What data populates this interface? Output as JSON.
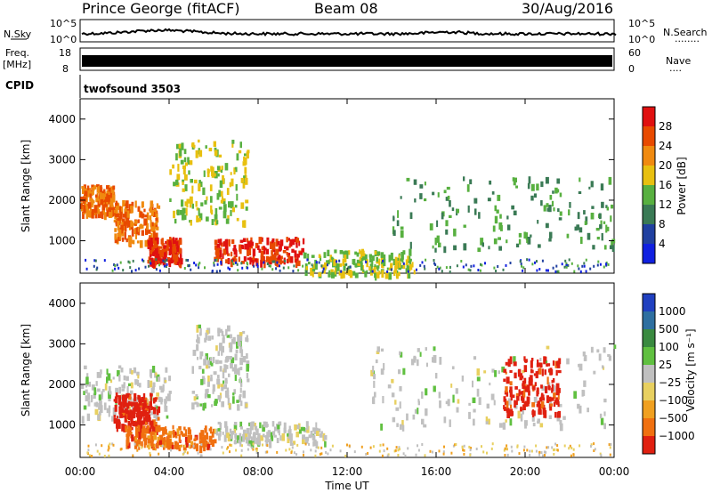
{
  "header": {
    "station": "Prince George (fitACF)",
    "beam": "Beam 08",
    "date": "30/Aug/2016"
  },
  "panels": {
    "nsky_label": "N.Sky",
    "nsearch_label": "N.Search",
    "nsearch_dots": "........",
    "freq_label_top": "Freq.",
    "freq_label_unit": "[MHz]",
    "nave_label": "Nave",
    "nave_dots": "....",
    "cpid_label": "CPID",
    "cpid_value": "twofsound 3503",
    "nsky_ticks_left": [
      "10^5",
      "10^0"
    ],
    "nsearch_ticks_right": [
      "10^5",
      "10^0"
    ],
    "freq_ticks_left": [
      "18",
      "8"
    ],
    "nave_ticks_right": [
      "60",
      "0"
    ]
  },
  "chart_data": [
    {
      "type": "heatmap",
      "name": "power",
      "xlabel": "",
      "ylabel": "Slant Range [km]",
      "x_range_hours": [
        0,
        24
      ],
      "ylim": [
        200,
        4500
      ],
      "yticks": [
        1000,
        2000,
        3000,
        4000
      ],
      "colorbar": {
        "label": "Power [dB]",
        "ticks": [
          4,
          8,
          12,
          16,
          20,
          24,
          28
        ],
        "colors": [
          "#1020e0",
          "#2040a0",
          "#3a7a55",
          "#58b040",
          "#e8c010",
          "#f08a10",
          "#e84a00",
          "#e01010"
        ]
      },
      "features": [
        {
          "time_h": [
            0.0,
            1.5
          ],
          "range_km": [
            1700,
            2400
          ],
          "level_db": 24
        },
        {
          "time_h": [
            1.5,
            3.5
          ],
          "range_km": [
            1000,
            2000
          ],
          "level_db": 22
        },
        {
          "time_h": [
            3.0,
            4.5
          ],
          "range_km": [
            500,
            1100
          ],
          "level_db": 26
        },
        {
          "time_h": [
            4.0,
            7.5
          ],
          "range_km": [
            1500,
            3500
          ],
          "level_db": 14
        },
        {
          "time_h": [
            6.0,
            10.0
          ],
          "range_km": [
            500,
            1100
          ],
          "level_db": 26
        },
        {
          "time_h": [
            10.0,
            15.0
          ],
          "range_km": [
            200,
            800
          ],
          "level_db": 16
        },
        {
          "time_h": [
            14.0,
            24.0
          ],
          "range_km": [
            800,
            2600
          ],
          "level_db": 12
        }
      ]
    },
    {
      "type": "heatmap",
      "name": "velocity",
      "xlabel": "Time UT",
      "ylabel": "Slant Range [km]",
      "x_range_hours": [
        0,
        24
      ],
      "ylim": [
        200,
        4500
      ],
      "yticks": [
        1000,
        2000,
        3000,
        4000
      ],
      "xticks": [
        "00:00",
        "04:00",
        "08:00",
        "12:00",
        "16:00",
        "20:00",
        "00:00"
      ],
      "colorbar": {
        "label": "Velocity [m s⁻¹]",
        "ticks": [
          "1000",
          "500",
          "100",
          "25",
          "−25",
          "−100",
          "−500",
          "−1000"
        ],
        "colors": [
          "#2040c0",
          "#2e6fa0",
          "#3a8a40",
          "#60c040",
          "#c0c0c0",
          "#e8d060",
          "#f0a020",
          "#f07010",
          "#e02010"
        ]
      },
      "features": [
        {
          "time_h": [
            0.0,
            4.0
          ],
          "range_km": [
            1200,
            2500
          ],
          "velocity_ms": 0
        },
        {
          "time_h": [
            1.5,
            3.5
          ],
          "range_km": [
            900,
            1800
          ],
          "velocity_ms": -800
        },
        {
          "time_h": [
            2.0,
            6.0
          ],
          "range_km": [
            500,
            1000
          ],
          "velocity_ms": -400
        },
        {
          "time_h": [
            5.0,
            7.5
          ],
          "range_km": [
            1500,
            3500
          ],
          "velocity_ms": 0
        },
        {
          "time_h": [
            6.0,
            11.0
          ],
          "range_km": [
            600,
            1100
          ],
          "velocity_ms": 0
        },
        {
          "time_h": [
            13.0,
            24.0
          ],
          "range_km": [
            1000,
            3000
          ],
          "velocity_ms": 0
        },
        {
          "time_h": [
            19.0,
            21.5
          ],
          "range_km": [
            1300,
            2700
          ],
          "velocity_ms": -700
        }
      ]
    }
  ]
}
